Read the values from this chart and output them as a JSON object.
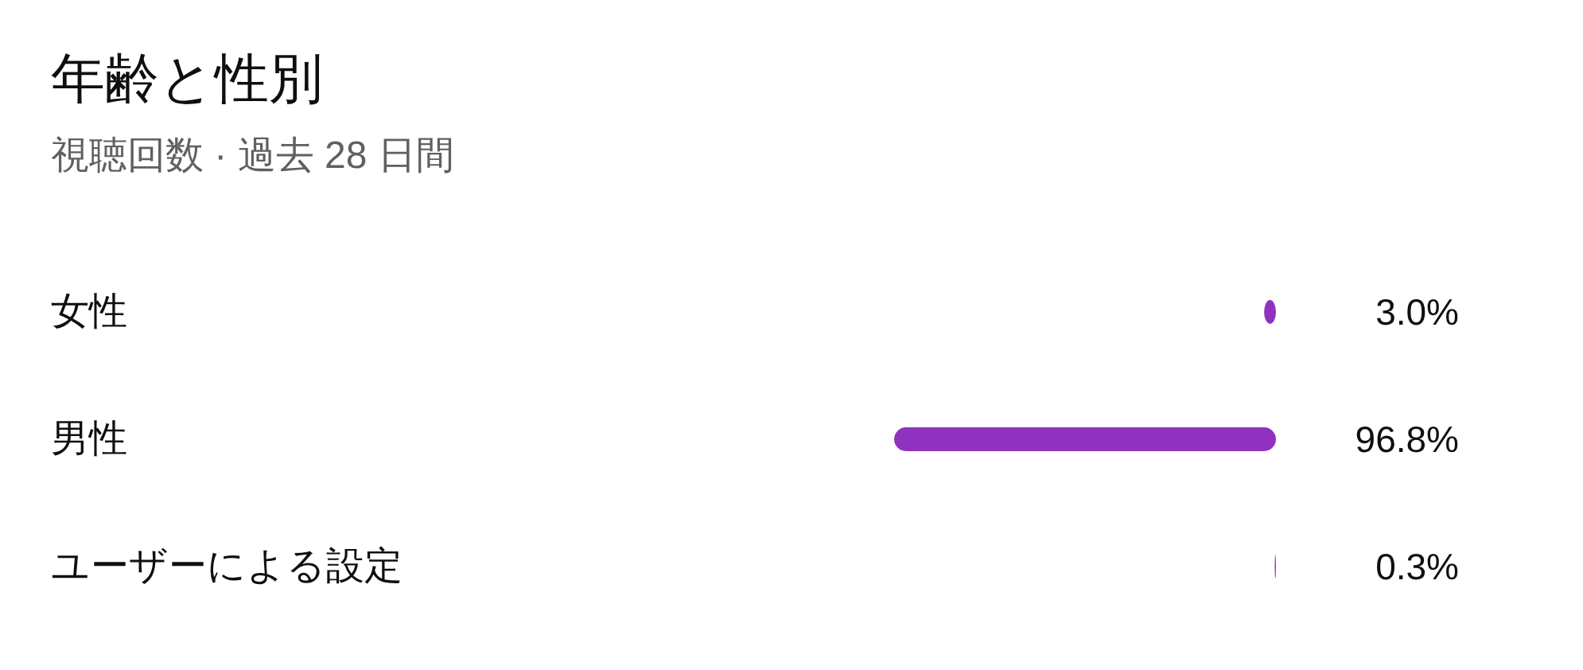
{
  "chart_data": {
    "type": "bar",
    "orientation": "horizontal",
    "title": "年齢と性別",
    "subtitle": "視聴回数 · 過去 28 日間",
    "categories": [
      "女性",
      "男性",
      "ユーザーによる設定"
    ],
    "values": [
      3.0,
      96.8,
      0.3
    ],
    "value_labels": [
      "3.0%",
      "96.8%",
      "0.3%"
    ],
    "color": "#9032c0"
  }
}
